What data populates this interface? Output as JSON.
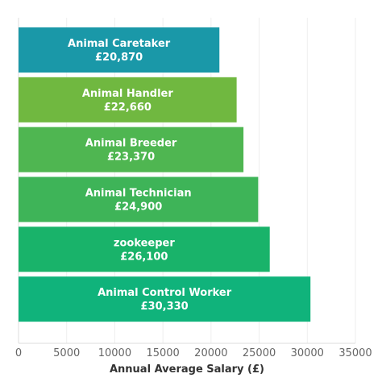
{
  "chart_data": {
    "type": "bar",
    "orientation": "horizontal",
    "categories": [
      "Animal Caretaker",
      "Animal Handler",
      "Animal Breeder",
      "Animal Technician",
      "zookeeper",
      "Animal Control Worker"
    ],
    "values": [
      20870,
      22660,
      23370,
      24900,
      26100,
      30330
    ],
    "value_labels": [
      "£20,870",
      "£22,660",
      "£23,370",
      "£24,900",
      "£26,100",
      "£30,330"
    ],
    "colors": [
      "#1a98a8",
      "#70b840",
      "#4fb651",
      "#3eb458",
      "#19b36a",
      "#10b37b"
    ],
    "xlabel": "Annual Average Salary (£)",
    "xlim": [
      0,
      35000
    ],
    "x_ticks": [
      0,
      5000,
      10000,
      15000,
      20000,
      25000,
      30000,
      35000
    ],
    "grid": true
  }
}
